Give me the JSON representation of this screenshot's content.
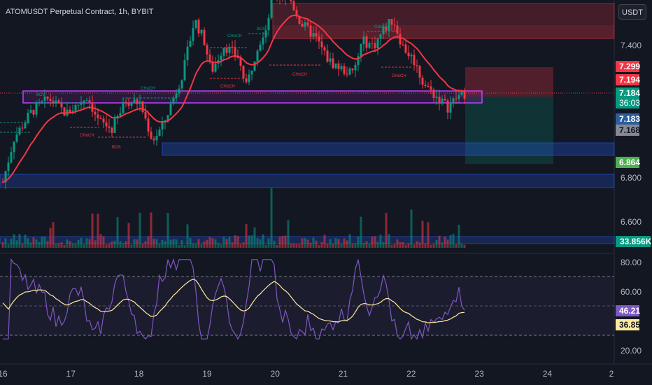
{
  "header": {
    "title": "ATOMUSDT Perpetual Contract, 1h, BYBIT",
    "currency_button": "USDT"
  },
  "price_axis": {
    "ticks": [
      {
        "value": 7.4,
        "label": "7.400"
      },
      {
        "value": 6.8,
        "label": "6.800"
      },
      {
        "value": 6.6,
        "label": "6.600"
      }
    ],
    "tags": [
      {
        "label": "7.299",
        "value": 7.299,
        "color": "#f23645"
      },
      {
        "label": "7.194",
        "value": 7.194,
        "color": "#f23645"
      },
      {
        "label": "7.184",
        "value": 7.184,
        "color": "#089981",
        "countdown": "36:03"
      },
      {
        "label": "7.183",
        "value": 7.183,
        "color": "#2a5e9c"
      },
      {
        "label": "7.168",
        "value": 7.168,
        "color": "#868993"
      },
      {
        "label": "6.864",
        "value": 6.864,
        "color": "#4caf50"
      }
    ]
  },
  "volume": {
    "label": "33.856K",
    "color": "#089981"
  },
  "rsi": {
    "ticks": [
      {
        "value": 80,
        "label": "80.00"
      },
      {
        "value": 60,
        "label": "60.00"
      },
      {
        "value": 20,
        "label": "20.00"
      }
    ],
    "tags": [
      {
        "label": "46.21",
        "value": 46.21,
        "color": "#7e57c2"
      },
      {
        "label": "36.85",
        "value": 36.85,
        "color": "#ffeb9c"
      }
    ]
  },
  "time_axis": {
    "ticks": [
      {
        "label": "16",
        "day": 0
      },
      {
        "label": "17",
        "day": 1
      },
      {
        "label": "18",
        "day": 2
      },
      {
        "label": "19",
        "day": 3
      },
      {
        "label": "20",
        "day": 4
      },
      {
        "label": "21",
        "day": 5
      },
      {
        "label": "22",
        "day": 6
      },
      {
        "label": "23",
        "day": 7
      },
      {
        "label": "24",
        "day": 8
      },
      {
        "label": "2",
        "day": 9
      }
    ]
  },
  "annotations": {
    "chochs": [
      "CHoCH",
      "CHoCH",
      "CHoCH",
      "CHoCH",
      "CHoCH",
      "CHoCH",
      "CHoCH",
      "CHoCH"
    ],
    "bos": [
      "BOS",
      "BOS",
      "BOS"
    ]
  },
  "colors": {
    "up": "#089981",
    "down": "#f23645",
    "ema": "#f23645",
    "rsi_line": "#7e57c2",
    "rsi_ma": "#ffeb9c"
  }
}
